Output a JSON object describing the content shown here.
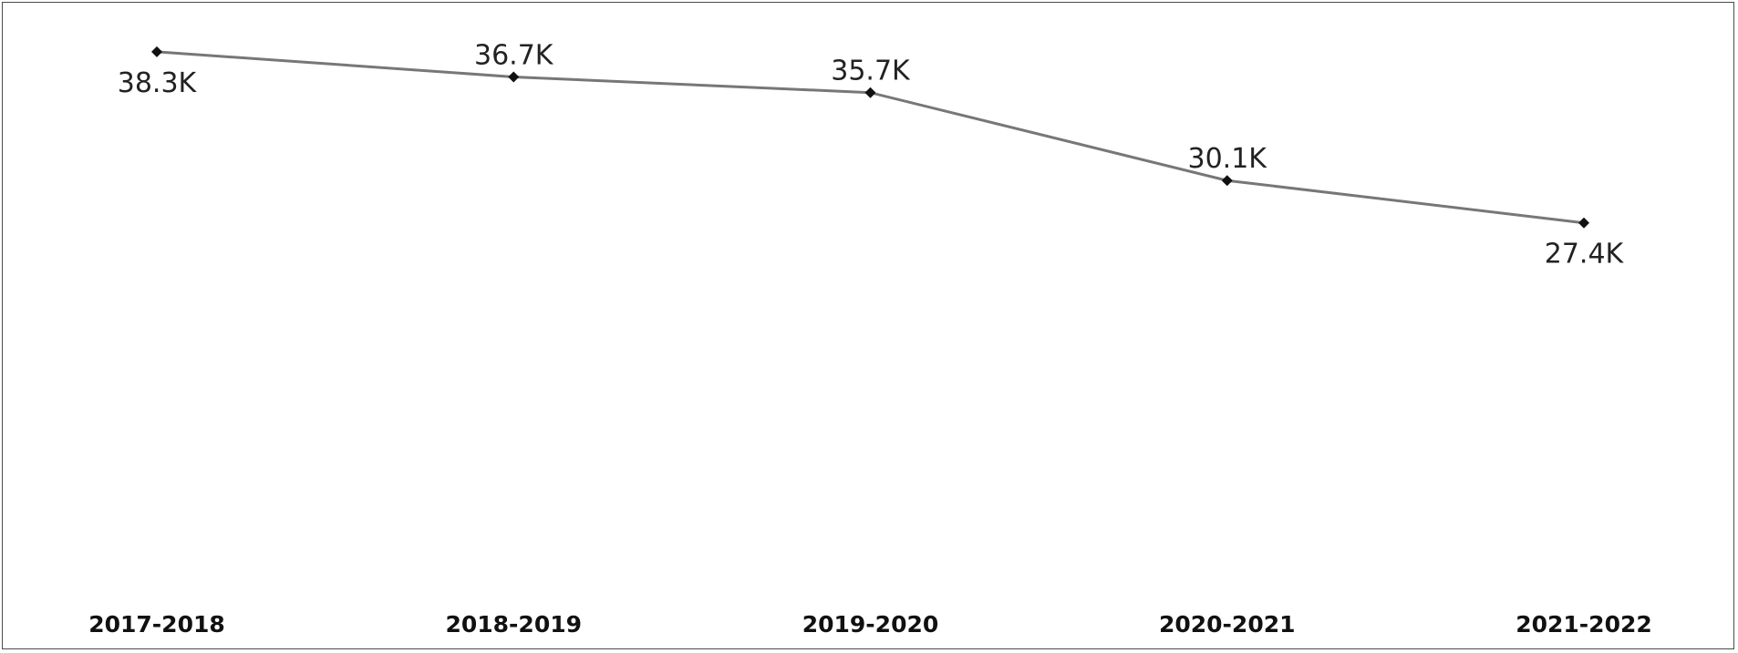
{
  "chart_data": {
    "type": "line",
    "categories": [
      "2017-2018",
      "2018-2019",
      "2019-2020",
      "2020-2021",
      "2021-2022"
    ],
    "values": [
      38.3,
      36.7,
      35.7,
      30.1,
      27.4
    ],
    "data_labels": [
      "38.3K",
      "36.7K",
      "35.7K",
      "30.1K",
      "27.4K"
    ],
    "label_side": [
      "below",
      "above",
      "above",
      "above",
      "below"
    ],
    "title": "",
    "xlabel": "",
    "ylabel": "",
    "value_unit": "thousands",
    "ylim": [
      0,
      41.6
    ],
    "grid": false,
    "legend": "none",
    "colors": {
      "line": "#777777",
      "marker": "#111111",
      "text": "#222222"
    }
  }
}
